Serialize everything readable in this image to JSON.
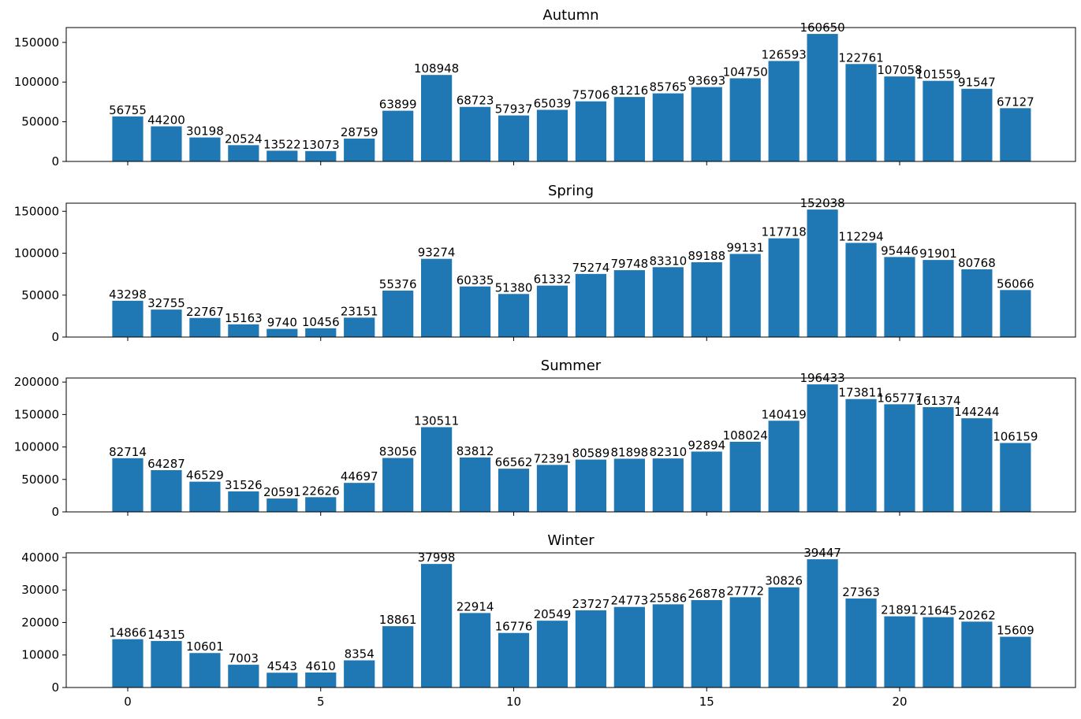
{
  "chart_data": [
    {
      "type": "bar",
      "title": "Autumn",
      "xlabel": "",
      "ylabel": "",
      "x": [
        0,
        1,
        2,
        3,
        4,
        5,
        6,
        7,
        8,
        9,
        10,
        11,
        12,
        13,
        14,
        15,
        16,
        17,
        18,
        19,
        20,
        21,
        22,
        23
      ],
      "values": [
        56755,
        44200,
        30198,
        20524,
        13522,
        13073,
        28759,
        63899,
        108948,
        68723,
        57937,
        65039,
        75706,
        81216,
        85765,
        93693,
        104750,
        126593,
        160650,
        122761,
        107058,
        101559,
        91547,
        67127
      ],
      "ylim": [
        0,
        168682
      ],
      "yticks": [
        0,
        50000,
        100000,
        150000
      ],
      "xticks": [
        0,
        5,
        10,
        15,
        20
      ],
      "show_xtick_labels": false,
      "grid": false,
      "color": "#1f77b4"
    },
    {
      "type": "bar",
      "title": "Spring",
      "xlabel": "",
      "ylabel": "",
      "x": [
        0,
        1,
        2,
        3,
        4,
        5,
        6,
        7,
        8,
        9,
        10,
        11,
        12,
        13,
        14,
        15,
        16,
        17,
        18,
        19,
        20,
        21,
        22,
        23
      ],
      "values": [
        43298,
        32755,
        22767,
        15163,
        9740,
        10456,
        23151,
        55376,
        93274,
        60335,
        51380,
        61332,
        75274,
        79748,
        83310,
        89188,
        99131,
        117718,
        152038,
        112294,
        95446,
        91901,
        80768,
        56066
      ],
      "ylim": [
        0,
        159640
      ],
      "yticks": [
        0,
        50000,
        100000,
        150000
      ],
      "xticks": [
        0,
        5,
        10,
        15,
        20
      ],
      "show_xtick_labels": false,
      "grid": false,
      "color": "#1f77b4"
    },
    {
      "type": "bar",
      "title": "Summer",
      "xlabel": "",
      "ylabel": "",
      "x": [
        0,
        1,
        2,
        3,
        4,
        5,
        6,
        7,
        8,
        9,
        10,
        11,
        12,
        13,
        14,
        15,
        16,
        17,
        18,
        19,
        20,
        21,
        22,
        23
      ],
      "values": [
        82714,
        64287,
        46529,
        31526,
        20591,
        22626,
        44697,
        83056,
        130511,
        83812,
        66562,
        72391,
        80589,
        81898,
        82310,
        92894,
        108024,
        140419,
        196433,
        173811,
        165777,
        161374,
        144244,
        106159
      ],
      "ylim": [
        0,
        206255
      ],
      "yticks": [
        0,
        50000,
        100000,
        150000,
        200000
      ],
      "xticks": [
        0,
        5,
        10,
        15,
        20
      ],
      "show_xtick_labels": false,
      "grid": false,
      "color": "#1f77b4"
    },
    {
      "type": "bar",
      "title": "Winter",
      "xlabel": "",
      "ylabel": "",
      "x": [
        0,
        1,
        2,
        3,
        4,
        5,
        6,
        7,
        8,
        9,
        10,
        11,
        12,
        13,
        14,
        15,
        16,
        17,
        18,
        19,
        20,
        21,
        22,
        23
      ],
      "values": [
        14866,
        14315,
        10601,
        7003,
        4543,
        4610,
        8354,
        18861,
        37998,
        22914,
        16776,
        20549,
        23727,
        24773,
        25586,
        26878,
        27772,
        30826,
        39447,
        27363,
        21891,
        21645,
        20262,
        15609
      ],
      "ylim": [
        0,
        41419
      ],
      "yticks": [
        0,
        10000,
        20000,
        30000,
        40000
      ],
      "xticks": [
        0,
        5,
        10,
        15,
        20
      ],
      "show_xtick_labels": true,
      "grid": false,
      "color": "#1f77b4"
    }
  ]
}
